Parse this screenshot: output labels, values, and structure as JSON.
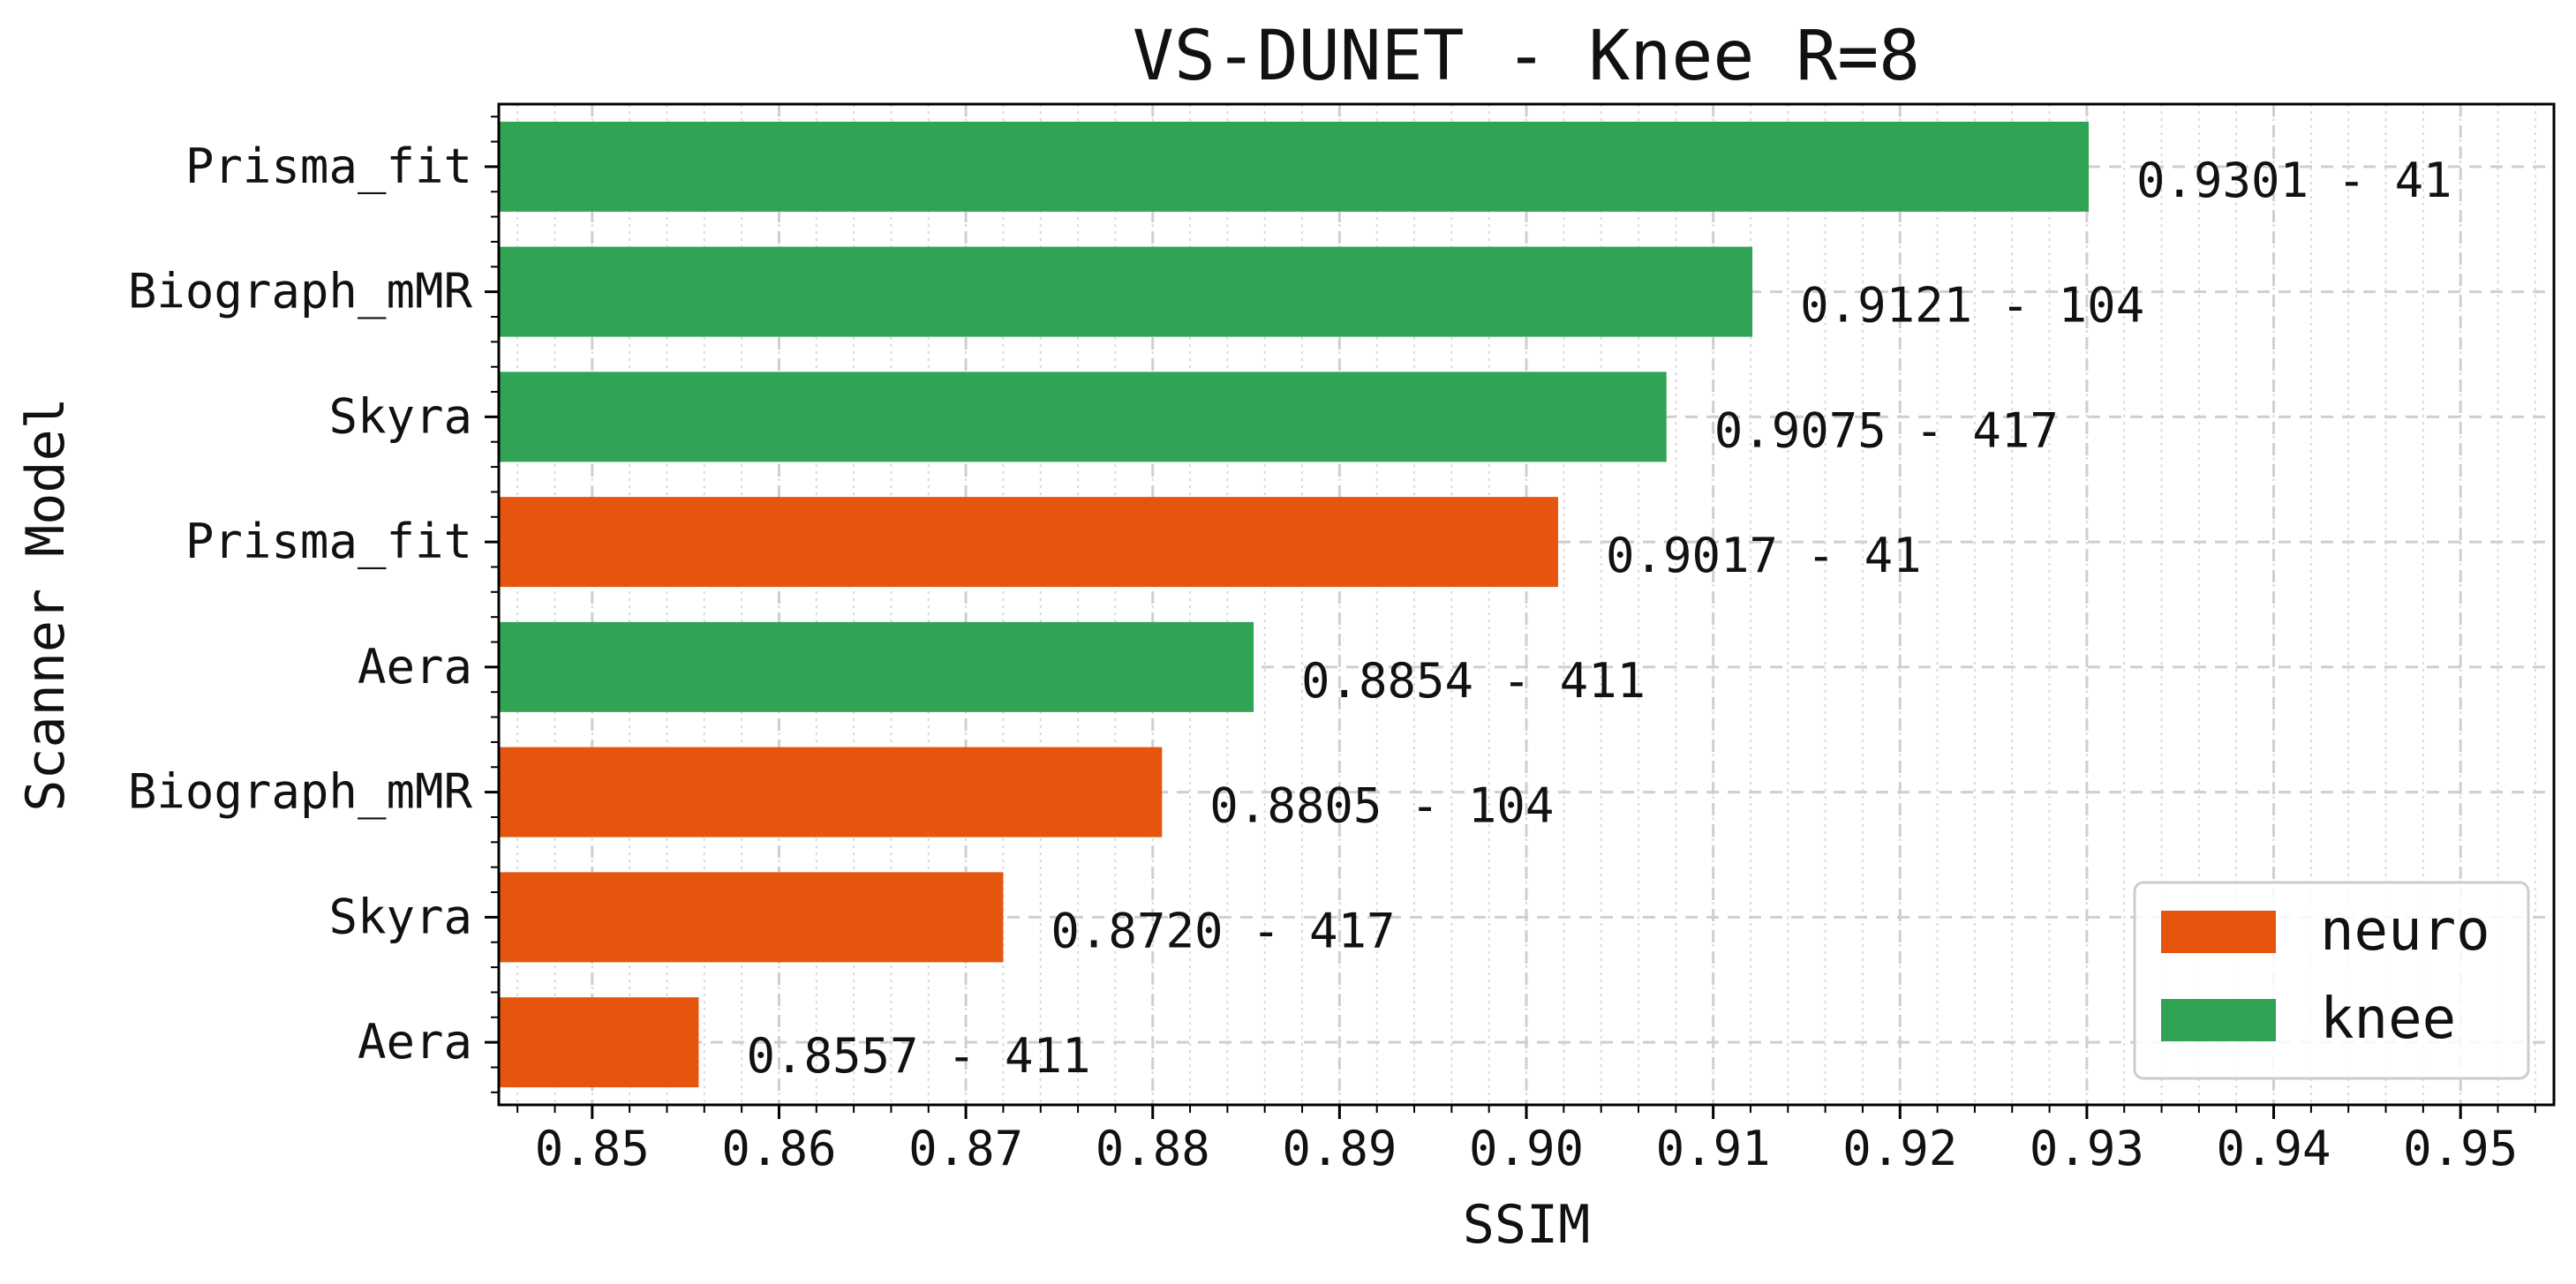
{
  "chart_data": {
    "type": "bar",
    "orientation": "horizontal",
    "title": "VS-DUNET - Knee R=8",
    "xlabel": "SSIM",
    "ylabel": "Scanner Model",
    "xlim": [
      0.845,
      0.955
    ],
    "xticks": [
      0.85,
      0.86,
      0.87,
      0.88,
      0.89,
      0.9,
      0.91,
      0.92,
      0.93,
      0.94,
      0.95
    ],
    "xtick_labels": [
      "0.85",
      "0.86",
      "0.87",
      "0.88",
      "0.89",
      "0.90",
      "0.91",
      "0.92",
      "0.93",
      "0.94",
      "0.95"
    ],
    "grid": true,
    "legend_position": "bottom-right",
    "colors": {
      "neuro": "#e6550d",
      "knee": "#31a354"
    },
    "legend": [
      {
        "label": "neuro",
        "group": "neuro"
      },
      {
        "label": "knee",
        "group": "knee"
      }
    ],
    "bars": [
      {
        "category": "Prisma_fit",
        "group": "knee",
        "value": 0.9301,
        "label": "0.9301 - 41"
      },
      {
        "category": "Biograph_mMR",
        "group": "knee",
        "value": 0.9121,
        "label": "0.9121 - 104"
      },
      {
        "category": "Skyra",
        "group": "knee",
        "value": 0.9075,
        "label": "0.9075 - 417"
      },
      {
        "category": "Prisma_fit",
        "group": "neuro",
        "value": 0.9017,
        "label": "0.9017 - 41"
      },
      {
        "category": "Aera",
        "group": "knee",
        "value": 0.8854,
        "label": "0.8854 - 411"
      },
      {
        "category": "Biograph_mMR",
        "group": "neuro",
        "value": 0.8805,
        "label": "0.8805 - 104"
      },
      {
        "category": "Skyra",
        "group": "neuro",
        "value": 0.872,
        "label": "0.8720 - 417"
      },
      {
        "category": "Aera",
        "group": "neuro",
        "value": 0.8557,
        "label": "0.8557 - 411"
      }
    ]
  }
}
